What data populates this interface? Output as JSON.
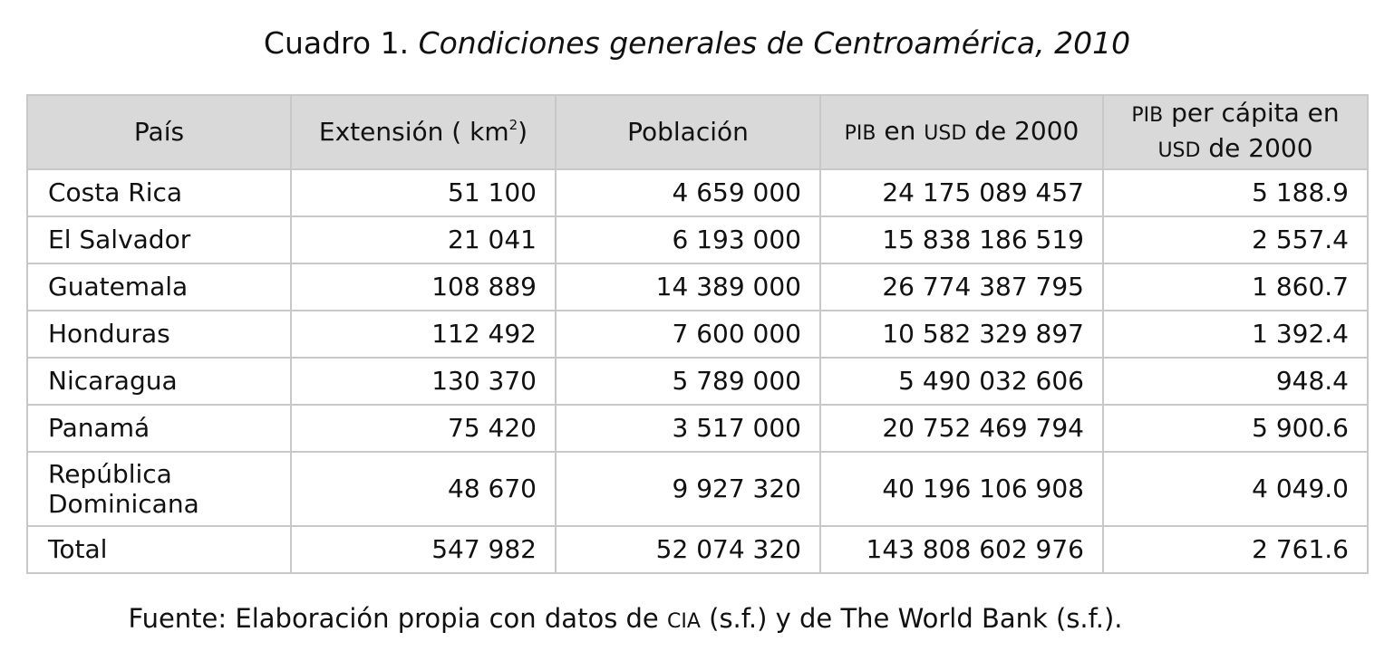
{
  "caption": {
    "label": "Cuadro 1.",
    "title": "Condiciones generales de Centroamérica, 2010"
  },
  "table": {
    "headers": {
      "country": "País",
      "area_pre": "Extensión ( km",
      "area_sup": "2",
      "area_post": ")",
      "population": "Población",
      "gdp_pib": "PIB",
      "gdp_mid": "en",
      "gdp_usd": "USD",
      "gdp_post": "de 2000",
      "gdppc_pib": "PIB",
      "gdppc_mid": "per cápita en",
      "gdppc_usd": "USD",
      "gdppc_post": "de 2000"
    },
    "rows": [
      {
        "country": "Costa Rica",
        "area": "51 100",
        "population": "4 659 000",
        "gdp": "24 175 089 457",
        "gdp_pc": "5 188.9"
      },
      {
        "country": "El Salvador",
        "area": "21 041",
        "population": "6 193 000",
        "gdp": "15 838 186 519",
        "gdp_pc": "2 557.4"
      },
      {
        "country": "Guatemala",
        "area": "108 889",
        "population": "14 389 000",
        "gdp": "26 774 387 795",
        "gdp_pc": "1 860.7"
      },
      {
        "country": "Honduras",
        "area": "112 492",
        "population": "7 600 000",
        "gdp": "10 582 329 897",
        "gdp_pc": "1 392.4"
      },
      {
        "country": "Nicaragua",
        "area": "130 370",
        "population": "5 789 000",
        "gdp": "5 490 032 606",
        "gdp_pc": "948.4"
      },
      {
        "country": "Panamá",
        "area": "75 420",
        "population": "3 517 000",
        "gdp": "20 752 469 794",
        "gdp_pc": "5 900.6"
      },
      {
        "country": "República Dominicana",
        "area": "48 670",
        "population": "9 927 320",
        "gdp": "40 196 106 908",
        "gdp_pc": "4 049.0"
      },
      {
        "country": "Total",
        "area": "547 982",
        "population": "52 074 320",
        "gdp": "143 808 602 976",
        "gdp_pc": "2 761.6"
      }
    ]
  },
  "source": {
    "pre": "Fuente: Elaboración propia con datos de",
    "cia": "CIA",
    "post": "(s.f.) y de The World Bank (s.f.)."
  }
}
